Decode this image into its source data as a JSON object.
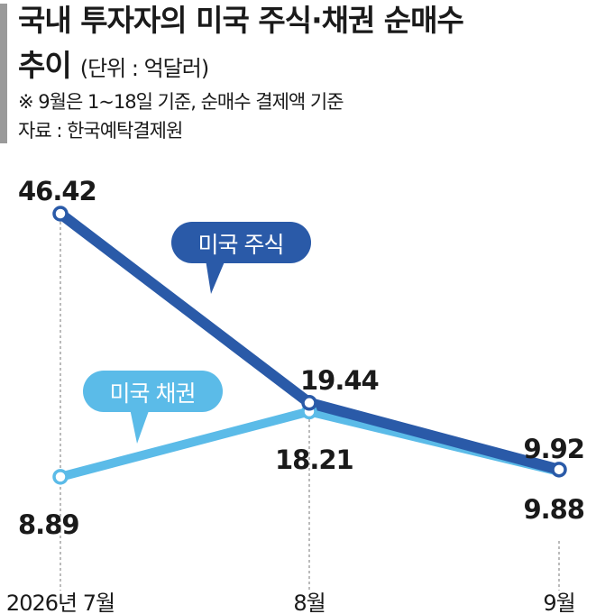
{
  "header": {
    "title_line1": "국내 투자자의 미국 주식·채권 순매수",
    "title_line2": "추이",
    "unit": "(단위 : 억달러)",
    "note": "※ 9월은 1~18일 기준, 순매수 결제액 기준",
    "source": "자료 : 한국예탁결제원"
  },
  "colors": {
    "stock": "#2a5aa8",
    "bond": "#5bbbe8",
    "guide": "#777777"
  },
  "chart_data": {
    "type": "line",
    "title": "국내 투자자의 미국 주식·채권 순매수 추이",
    "categories": [
      "2026년 7월",
      "8월",
      "9월"
    ],
    "series": [
      {
        "name": "미국 주식",
        "values": [
          46.42,
          19.44,
          9.92
        ],
        "labels": [
          "46.42",
          "19.44",
          "9.92"
        ]
      },
      {
        "name": "미국 채권",
        "values": [
          8.89,
          18.21,
          9.88
        ],
        "labels": [
          "8.89",
          "18.21",
          "9.88"
        ]
      }
    ]
  }
}
